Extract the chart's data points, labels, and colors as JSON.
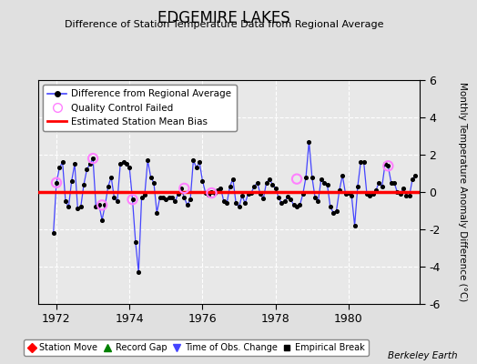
{
  "title": "EDGEMIRE LAKES",
  "subtitle": "Difference of Station Temperature Data from Regional Average",
  "ylabel": "Monthly Temperature Anomaly Difference (°C)",
  "ylim": [
    -6,
    6
  ],
  "xlim": [
    1971.5,
    1981.95
  ],
  "bias_value": 0.0,
  "background_color": "#e0e0e0",
  "plot_bg_color": "#e8e8e8",
  "grid_color": "#ffffff",
  "watermark": "Berkeley Earth",
  "time_series": {
    "x": [
      1971.917,
      1972.0,
      1972.083,
      1972.167,
      1972.25,
      1972.333,
      1972.417,
      1972.5,
      1972.583,
      1972.667,
      1972.75,
      1972.833,
      1972.917,
      1973.0,
      1973.083,
      1973.167,
      1973.25,
      1973.333,
      1973.417,
      1973.5,
      1973.583,
      1973.667,
      1973.75,
      1973.833,
      1973.917,
      1974.0,
      1974.083,
      1974.167,
      1974.25,
      1974.333,
      1974.417,
      1974.5,
      1974.583,
      1974.667,
      1974.75,
      1974.833,
      1974.917,
      1975.0,
      1975.083,
      1975.167,
      1975.25,
      1975.333,
      1975.417,
      1975.5,
      1975.583,
      1975.667,
      1975.75,
      1975.833,
      1975.917,
      1976.0,
      1976.083,
      1976.167,
      1976.25,
      1976.333,
      1976.417,
      1976.5,
      1976.583,
      1976.667,
      1976.75,
      1976.833,
      1976.917,
      1977.0,
      1977.083,
      1977.167,
      1977.25,
      1977.333,
      1977.417,
      1977.5,
      1977.583,
      1977.667,
      1977.75,
      1977.833,
      1977.917,
      1978.0,
      1978.083,
      1978.167,
      1978.25,
      1978.333,
      1978.417,
      1978.5,
      1978.583,
      1978.667,
      1978.75,
      1978.833,
      1978.917,
      1979.0,
      1979.083,
      1979.167,
      1979.25,
      1979.333,
      1979.417,
      1979.5,
      1979.583,
      1979.667,
      1979.75,
      1979.833,
      1979.917,
      1980.0,
      1980.083,
      1980.167,
      1980.25,
      1980.333,
      1980.417,
      1980.5,
      1980.583,
      1980.667,
      1980.75,
      1980.833,
      1980.917,
      1981.0,
      1981.083,
      1981.167,
      1981.25,
      1981.333,
      1981.417,
      1981.5,
      1981.583,
      1981.667,
      1981.75,
      1981.833
    ],
    "y": [
      -2.2,
      0.5,
      1.3,
      1.6,
      -0.5,
      -0.8,
      0.6,
      1.5,
      -0.9,
      -0.8,
      0.4,
      1.2,
      1.5,
      1.8,
      -0.8,
      -0.7,
      -1.5,
      -0.7,
      0.3,
      0.8,
      -0.3,
      -0.5,
      1.5,
      1.6,
      1.5,
      1.3,
      -0.4,
      -2.7,
      -4.3,
      -0.3,
      -0.15,
      1.7,
      0.8,
      0.5,
      -1.1,
      -0.3,
      -0.3,
      -0.4,
      -0.3,
      -0.3,
      -0.5,
      -0.1,
      0.2,
      -0.3,
      -0.7,
      -0.4,
      1.7,
      1.3,
      1.6,
      0.6,
      -0.05,
      -0.15,
      0.0,
      -0.05,
      0.1,
      0.2,
      -0.5,
      -0.6,
      0.3,
      0.7,
      -0.6,
      -0.8,
      -0.2,
      -0.6,
      -0.1,
      -0.05,
      0.3,
      0.5,
      -0.1,
      -0.35,
      0.5,
      0.7,
      0.4,
      0.2,
      -0.3,
      -0.6,
      -0.5,
      -0.25,
      -0.4,
      -0.7,
      -0.8,
      -0.7,
      -0.1,
      0.8,
      2.7,
      0.8,
      -0.3,
      -0.5,
      0.7,
      0.5,
      0.4,
      -0.8,
      -1.1,
      -1.0,
      0.1,
      0.9,
      -0.1,
      -0.05,
      -0.2,
      -1.8,
      0.3,
      1.6,
      1.6,
      -0.1,
      -0.2,
      -0.1,
      0.1,
      0.5,
      0.3,
      1.5,
      1.4,
      0.5,
      0.5,
      0.0,
      -0.1,
      0.2,
      -0.2,
      -0.2,
      0.7,
      0.9
    ]
  },
  "qc_failed_x": [
    1972.0,
    1973.0,
    1973.25,
    1974.083,
    1975.5,
    1976.25,
    1978.583,
    1981.083
  ],
  "qc_failed_y": [
    0.5,
    1.8,
    -0.7,
    -0.4,
    0.2,
    -0.05,
    0.7,
    1.4
  ],
  "line_color": "#4444ff",
  "dot_color": "#000000",
  "qc_color": "#ff80ff",
  "bias_color": "#ff0000",
  "xticks": [
    1972,
    1974,
    1976,
    1978,
    1980
  ],
  "yticks": [
    -6,
    -4,
    -2,
    0,
    2,
    4,
    6
  ]
}
